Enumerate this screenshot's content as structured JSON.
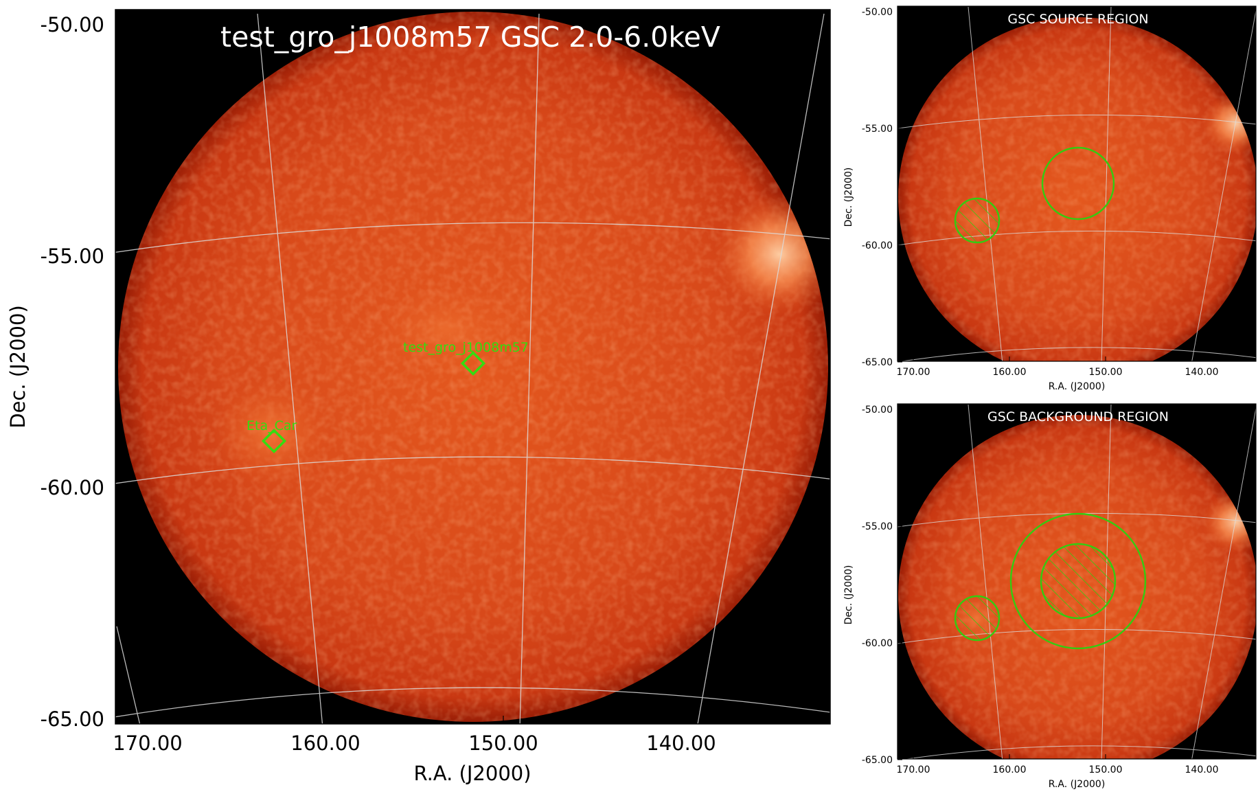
{
  "colors": {
    "sky_background": "#000000",
    "image_center": "#e0541c",
    "image_edge": "#b7280a",
    "bright_spot": "#ffb47a",
    "grid": "#dcdcdc",
    "region": "#33cc11"
  },
  "icons": [
    "source-diamond-icon",
    "region-circle-icon"
  ],
  "main_panel": {
    "title": "test_gro_j1008m57 GSC 2.0-6.0keV",
    "xlabel": "R.A. (J2000)",
    "ylabel": "Dec. (J2000)",
    "yticks": [
      "-50.00",
      "-55.00",
      "-60.00",
      "-65.00"
    ],
    "xticks": [
      "170.00",
      "160.00",
      "150.00",
      "140.00"
    ],
    "sources": [
      {
        "name": "test_gro_j1008m57"
      },
      {
        "name": "Eta_Car"
      }
    ]
  },
  "source_panel": {
    "title": "GSC SOURCE REGION",
    "xlabel": "R.A. (J2000)",
    "ylabel": "Dec. (J2000)",
    "yticks": [
      "-50.00",
      "-55.00",
      "-60.00",
      "-65.00"
    ],
    "xticks": [
      "170.00",
      "160.00",
      "150.00",
      "140.00"
    ]
  },
  "background_panel": {
    "title": "GSC BACKGROUND REGION",
    "xlabel": "R.A. (J2000)",
    "ylabel": "Dec. (J2000)",
    "yticks": [
      "-50.00",
      "-55.00",
      "-60.00",
      "-65.00"
    ],
    "xticks": [
      "170.00",
      "160.00",
      "150.00",
      "140.00"
    ]
  }
}
